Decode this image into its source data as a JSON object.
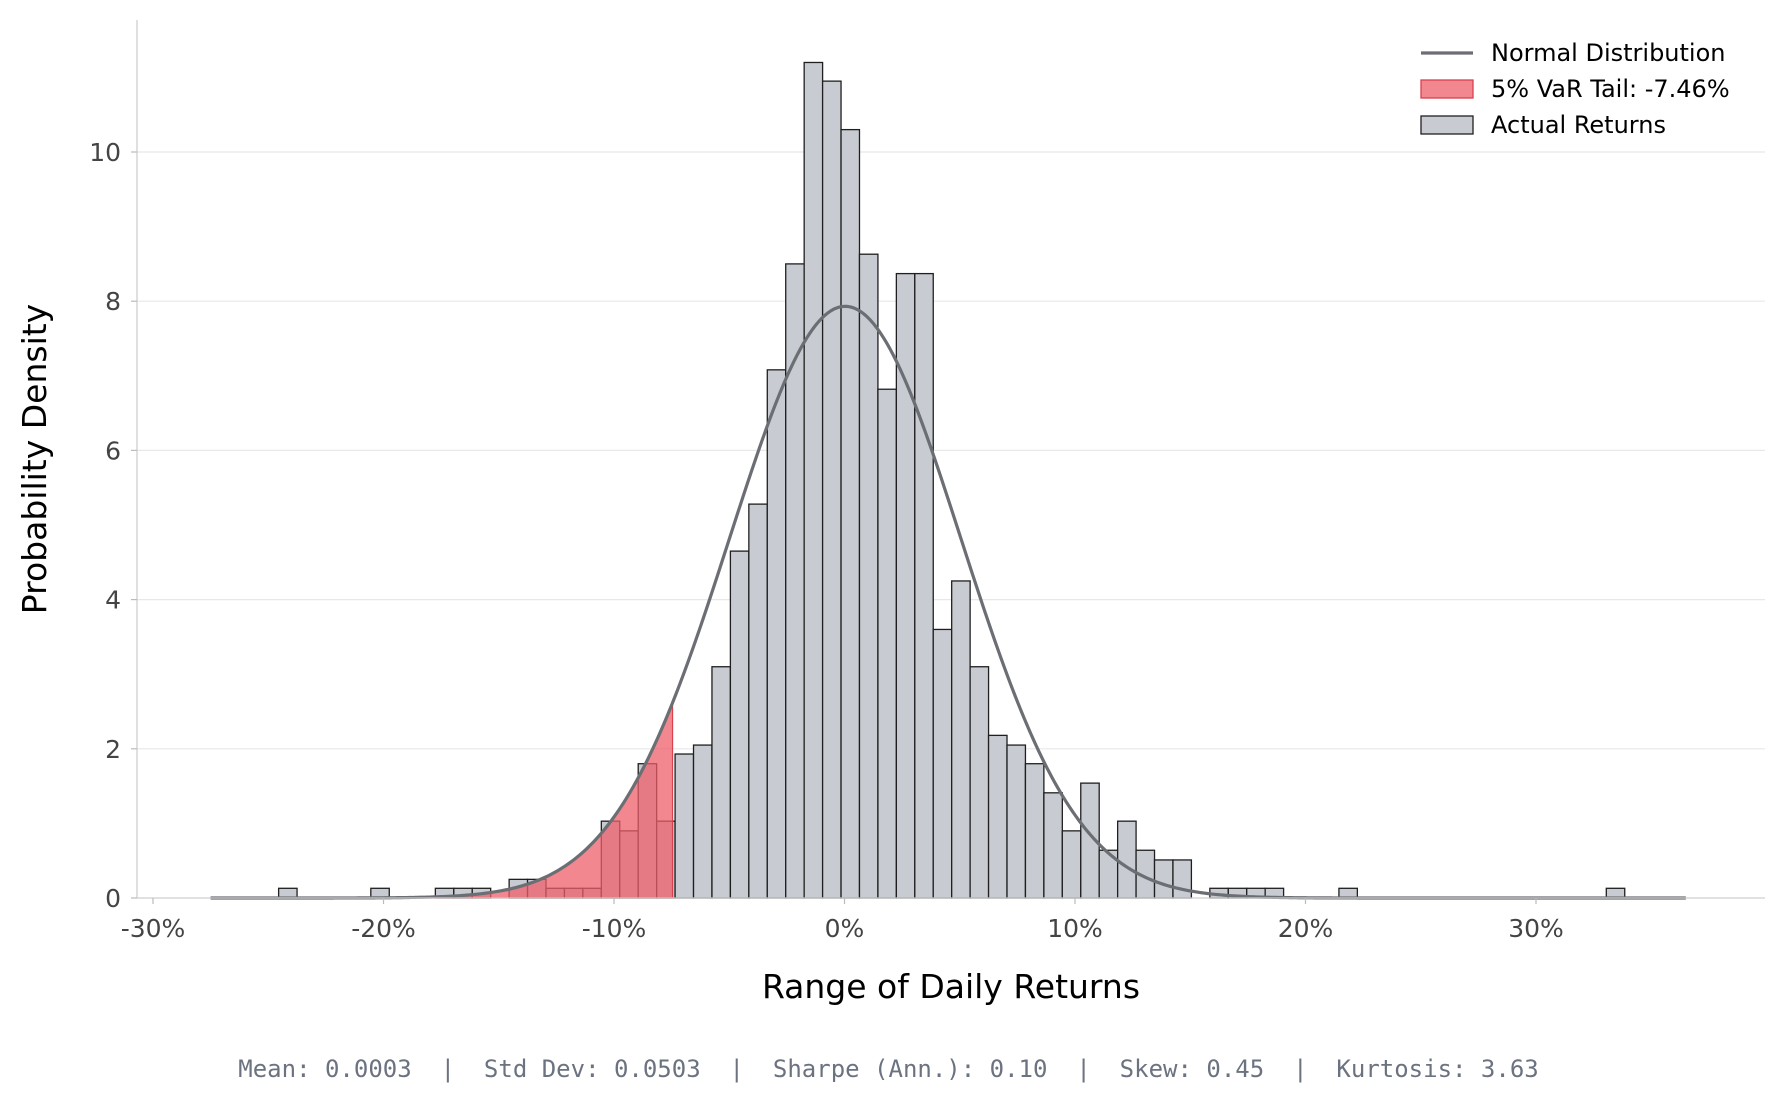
{
  "chart_data": {
    "type": "bar",
    "xlabel": "Range of Daily Returns",
    "ylabel": "Probability Density",
    "xlim": [
      -0.3,
      0.4
    ],
    "ylim": [
      0,
      11.7
    ],
    "x_ticks": [
      {
        "value": -0.3,
        "label": "-30%"
      },
      {
        "value": -0.2,
        "label": "-20%"
      },
      {
        "value": -0.1,
        "label": "-10%"
      },
      {
        "value": 0.0,
        "label": "0%"
      },
      {
        "value": 0.1,
        "label": "10%"
      },
      {
        "value": 0.2,
        "label": "20%"
      },
      {
        "value": 0.3,
        "label": "30%"
      }
    ],
    "y_ticks": [
      {
        "value": 0,
        "label": "0"
      },
      {
        "value": 2,
        "label": "2"
      },
      {
        "value": 4,
        "label": "4"
      },
      {
        "value": 6,
        "label": "6"
      },
      {
        "value": 8,
        "label": "8"
      },
      {
        "value": 10,
        "label": "10"
      }
    ],
    "grid": {
      "y": true,
      "x": false
    },
    "legend": {
      "position": "top-right",
      "entries": [
        {
          "label": "Normal Distribution",
          "kind": "line",
          "color": "#6b6e73"
        },
        {
          "label": "5% VaR Tail: -7.46%",
          "kind": "patch",
          "color": "#ef5f6b"
        },
        {
          "label": "Actual Returns",
          "kind": "patch",
          "color": "#c8ccd2"
        }
      ]
    },
    "histogram": {
      "name": "Actual Returns",
      "bin_width": 0.008,
      "bins": [
        {
          "x0": -0.2455,
          "density": 0.13
        },
        {
          "x0": -0.2055,
          "density": 0.13
        },
        {
          "x0": -0.1775,
          "density": 0.13
        },
        {
          "x0": -0.1695,
          "density": 0.13
        },
        {
          "x0": -0.1615,
          "density": 0.13
        },
        {
          "x0": -0.1455,
          "density": 0.25
        },
        {
          "x0": -0.1375,
          "density": 0.25
        },
        {
          "x0": -0.1295,
          "density": 0.13
        },
        {
          "x0": -0.1215,
          "density": 0.13
        },
        {
          "x0": -0.1135,
          "density": 0.13
        },
        {
          "x0": -0.1055,
          "density": 1.03
        },
        {
          "x0": -0.0975,
          "density": 0.9
        },
        {
          "x0": -0.0895,
          "density": 1.8
        },
        {
          "x0": -0.0815,
          "density": 1.03
        },
        {
          "x0": -0.0735,
          "density": 1.93
        },
        {
          "x0": -0.0655,
          "density": 2.05
        },
        {
          "x0": -0.0575,
          "density": 3.1
        },
        {
          "x0": -0.0495,
          "density": 4.65
        },
        {
          "x0": -0.0415,
          "density": 5.28
        },
        {
          "x0": -0.0335,
          "density": 7.08
        },
        {
          "x0": -0.0255,
          "density": 8.5
        },
        {
          "x0": -0.0175,
          "density": 11.2
        },
        {
          "x0": -0.0095,
          "density": 10.95
        },
        {
          "x0": -0.0015,
          "density": 10.3
        },
        {
          "x0": 0.0065,
          "density": 8.63
        },
        {
          "x0": 0.0145,
          "density": 6.82
        },
        {
          "x0": 0.0225,
          "density": 8.37
        },
        {
          "x0": 0.0305,
          "density": 8.37
        },
        {
          "x0": 0.0385,
          "density": 3.6
        },
        {
          "x0": 0.0465,
          "density": 4.25
        },
        {
          "x0": 0.0545,
          "density": 3.1
        },
        {
          "x0": 0.0625,
          "density": 2.18
        },
        {
          "x0": 0.0705,
          "density": 2.05
        },
        {
          "x0": 0.0785,
          "density": 1.8
        },
        {
          "x0": 0.0865,
          "density": 1.41
        },
        {
          "x0": 0.0945,
          "density": 0.9
        },
        {
          "x0": 0.1025,
          "density": 1.54
        },
        {
          "x0": 0.1105,
          "density": 0.64
        },
        {
          "x0": 0.1185,
          "density": 1.03
        },
        {
          "x0": 0.1265,
          "density": 0.64
        },
        {
          "x0": 0.1345,
          "density": 0.51
        },
        {
          "x0": 0.1425,
          "density": 0.51
        },
        {
          "x0": 0.1585,
          "density": 0.13
        },
        {
          "x0": 0.1665,
          "density": 0.13
        },
        {
          "x0": 0.1745,
          "density": 0.13
        },
        {
          "x0": 0.1825,
          "density": 0.13
        },
        {
          "x0": 0.2145,
          "density": 0.13
        },
        {
          "x0": 0.3305,
          "density": 0.13
        }
      ]
    },
    "normal_fit": {
      "name": "Normal Distribution",
      "mean": 0.0003,
      "std": 0.0503,
      "x_range": [
        -0.275,
        0.365
      ]
    },
    "var_tail": {
      "name": "5% VaR Tail: -7.46%",
      "threshold": -0.0746
    },
    "colors": {
      "bar_fill": "#c8ccd2",
      "bar_edge": "#1f1f1f",
      "tail_fill": "#ef5f6b",
      "tail_edge": "#d9414f",
      "curve": "#6b6e73",
      "grid": "#e8e8e8",
      "axis": "#cfcfcf"
    }
  },
  "stats_text": "Mean: 0.0003  |  Std Dev: 0.0503  |  Sharpe (Ann.): 0.10  |  Skew: 0.45  |  Kurtosis: 3.63"
}
